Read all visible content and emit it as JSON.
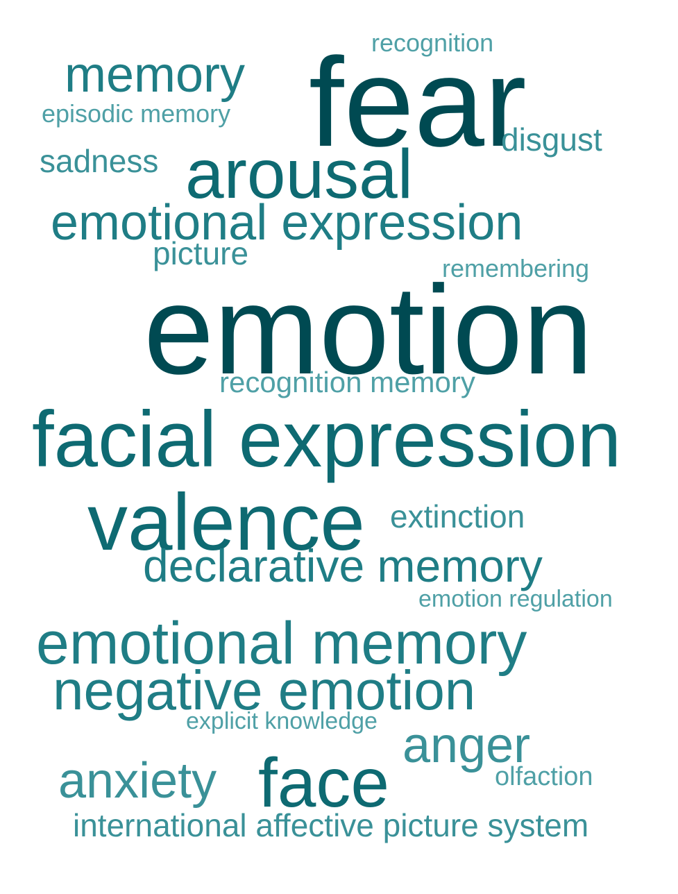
{
  "palette": {
    "darkest": "#004a52",
    "dark": "#0e6a72",
    "mid": "#1f7d85",
    "light": "#3a9198",
    "lightest": "#4fa0a6"
  },
  "words": [
    {
      "id": "recognition",
      "text": "recognition",
      "weight": 2,
      "tone": "lightest"
    },
    {
      "id": "memory",
      "text": "memory",
      "weight": 4,
      "tone": "mid"
    },
    {
      "id": "fear",
      "text": "fear",
      "weight": 9,
      "tone": "darkest"
    },
    {
      "id": "episodic-memory",
      "text": "episodic memory",
      "weight": 2,
      "tone": "lightest"
    },
    {
      "id": "disgust",
      "text": "disgust",
      "weight": 3,
      "tone": "light"
    },
    {
      "id": "sadness",
      "text": "sadness",
      "weight": 3,
      "tone": "light"
    },
    {
      "id": "arousal",
      "text": "arousal",
      "weight": 6,
      "tone": "dark"
    },
    {
      "id": "emotional-expression",
      "text": "emotional expression",
      "weight": 5,
      "tone": "mid"
    },
    {
      "id": "picture",
      "text": "picture",
      "weight": 3,
      "tone": "light"
    },
    {
      "id": "remembering",
      "text": "remembering",
      "weight": 2,
      "tone": "lightest"
    },
    {
      "id": "emotion",
      "text": "emotion",
      "weight": 10,
      "tone": "darkest"
    },
    {
      "id": "recognition-memory",
      "text": "recognition memory",
      "weight": 2,
      "tone": "lightest"
    },
    {
      "id": "facial-expression",
      "text": "facial expression",
      "weight": 8,
      "tone": "dark"
    },
    {
      "id": "valence",
      "text": "valence",
      "weight": 8,
      "tone": "dark"
    },
    {
      "id": "extinction",
      "text": "extinction",
      "weight": 3,
      "tone": "light"
    },
    {
      "id": "declarative-memory",
      "text": "declarative memory",
      "weight": 5,
      "tone": "mid"
    },
    {
      "id": "emotion-regulation",
      "text": "emotion regulation",
      "weight": 1,
      "tone": "lightest"
    },
    {
      "id": "emotional-memory",
      "text": "emotional memory",
      "weight": 6,
      "tone": "mid"
    },
    {
      "id": "negative-emotion",
      "text": "negative emotion",
      "weight": 6,
      "tone": "mid"
    },
    {
      "id": "explicit-knowledge",
      "text": "explicit knowledge",
      "weight": 1,
      "tone": "lightest"
    },
    {
      "id": "anger",
      "text": "anger",
      "weight": 5,
      "tone": "light"
    },
    {
      "id": "anxiety",
      "text": "anxiety",
      "weight": 5,
      "tone": "light"
    },
    {
      "id": "face",
      "text": "face",
      "weight": 7,
      "tone": "dark"
    },
    {
      "id": "olfaction",
      "text": "olfaction",
      "weight": 1,
      "tone": "lightest"
    },
    {
      "id": "international-affective-picture-system",
      "text": "international affective picture system",
      "weight": 3,
      "tone": "light"
    }
  ]
}
